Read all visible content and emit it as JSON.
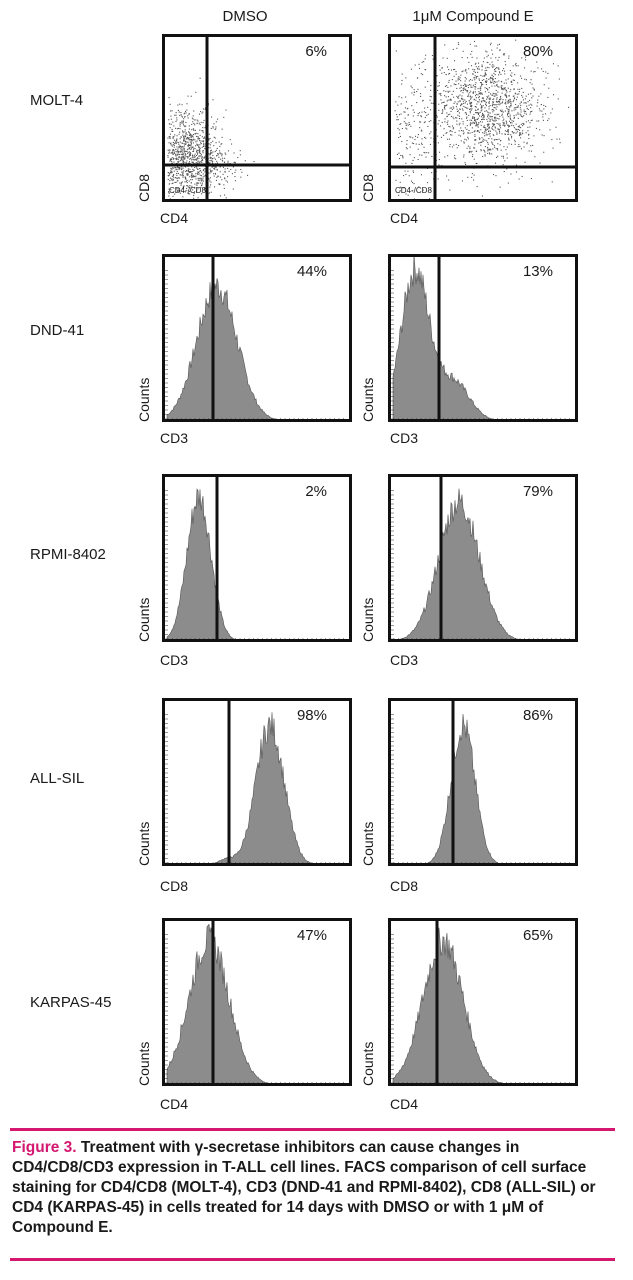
{
  "columns": [
    "DMSO",
    "1μM Compound E"
  ],
  "rows": [
    {
      "label": "MOLT-4",
      "x_axis": "CD4",
      "y_axis": "CD8",
      "type": "scatter",
      "panels": [
        {
          "percent": "6%",
          "quadrant_label": "CD4-/CD8"
        },
        {
          "percent": "80%",
          "quadrant_label": "CD4-/CD8"
        }
      ]
    },
    {
      "label": "DND-41",
      "x_axis": "CD3",
      "y_axis": "Counts",
      "type": "histogram",
      "panels": [
        {
          "percent": "44%"
        },
        {
          "percent": "13%"
        }
      ]
    },
    {
      "label": "RPMI-8402",
      "x_axis": "CD3",
      "y_axis": "Counts",
      "type": "histogram",
      "panels": [
        {
          "percent": "2%"
        },
        {
          "percent": "79%"
        }
      ]
    },
    {
      "label": "ALL-SIL",
      "x_axis": "CD8",
      "y_axis": "Counts",
      "type": "histogram",
      "panels": [
        {
          "percent": "98%"
        },
        {
          "percent": "86%"
        }
      ]
    },
    {
      "label": "KARPAS-45",
      "x_axis": "CD4",
      "y_axis": "Counts",
      "type": "histogram",
      "panels": [
        {
          "percent": "47%"
        },
        {
          "percent": "65%"
        }
      ]
    }
  ],
  "caption": {
    "figure_label": "Figure 3.",
    "text": "Treatment with γ-secretase inhibitors can cause changes in CD4/CD8/CD3 expression in T-ALL cell lines. FACS comparison of cell surface staining for CD4/CD8 (MOLT-4), CD3 (DND-41 and RPMI-8402), CD8 (ALL-SIL) or CD4 (KARPAS-45) in cells treated for 14 days with DMSO or with 1 μM of Compound E."
  },
  "colors": {
    "fill": "#8c8c8c",
    "accent": "#d4186f",
    "frame": "#111111"
  }
}
